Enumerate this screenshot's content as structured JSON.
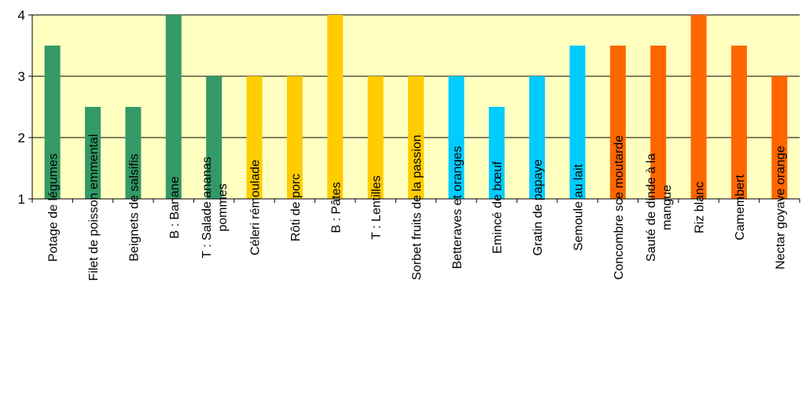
{
  "chart_data": {
    "type": "bar",
    "ylim": [
      1,
      4
    ],
    "yticks": [
      "1",
      "2",
      "3",
      "4"
    ],
    "grid": true,
    "background_color": "#FFFFC0",
    "categories": [
      "Potage de légumes",
      "Filet de poisson emmental",
      "Beignets de salsifis",
      "B : Banane",
      "T : Salade ananas pommes",
      "Céleri rémoulade",
      "Rôti de porc",
      "B : Pâtes",
      "T : Lentilles",
      "Sorbet fruits de la passion",
      "Betteraves et oranges",
      "Emincé de bœuf",
      "Gratin de papaye",
      "Semoule au lait",
      "Concombre sce moutarde",
      "Sauté de dinde à la mangue",
      "Riz blanc",
      "Camembert",
      "Nectar goyave orange"
    ],
    "category_lines": [
      [
        "Potage de légumes"
      ],
      [
        "Filet de poisson emmental"
      ],
      [
        "Beignets de salsifis"
      ],
      [
        "B : Banane"
      ],
      [
        "T : Salade ananas",
        "pommes"
      ],
      [
        "Céleri rémoulade"
      ],
      [
        "Rôti de porc"
      ],
      [
        "B : Pâtes"
      ],
      [
        "T : Lentilles"
      ],
      [
        "Sorbet fruits de la passion"
      ],
      [
        "Betteraves et oranges"
      ],
      [
        "Emincé de bœuf"
      ],
      [
        "Gratin de papaye"
      ],
      [
        "Semoule au lait"
      ],
      [
        "Concombre sce moutarde"
      ],
      [
        "Sauté de dinde à la",
        "mangue"
      ],
      [
        "Riz blanc"
      ],
      [
        "Camembert"
      ],
      [
        "Nectar goyave orange"
      ]
    ],
    "values": [
      3.5,
      2.5,
      2.5,
      4,
      3,
      3,
      3,
      4,
      3,
      3,
      3,
      2.5,
      3,
      3.5,
      3.5,
      3.5,
      4,
      3.5,
      3
    ],
    "bar_colors": [
      "#339966",
      "#339966",
      "#339966",
      "#339966",
      "#339966",
      "#FFCC00",
      "#FFCC00",
      "#FFCC00",
      "#FFCC00",
      "#FFCC00",
      "#00CCFF",
      "#00CCFF",
      "#00CCFF",
      "#00CCFF",
      "#FF6600",
      "#FF6600",
      "#FF6600",
      "#FF6600",
      "#FF6600"
    ]
  }
}
